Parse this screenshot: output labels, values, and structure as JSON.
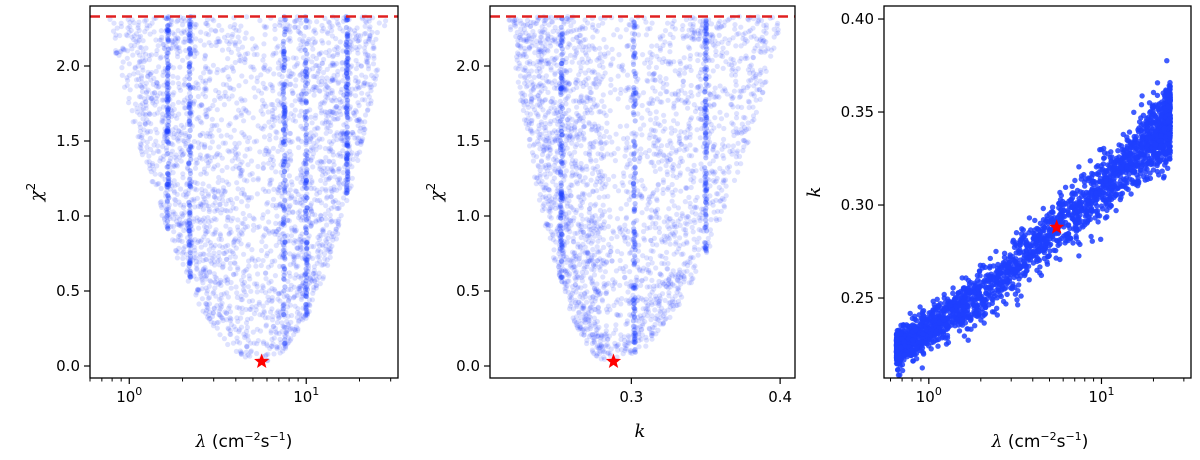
{
  "figure": {
    "background": "#ffffff",
    "point_color": "#1f3fff",
    "marker_color": "#ff0000",
    "threshold_color": "#e02020"
  },
  "chart_data": [
    {
      "type": "scatter",
      "xlabel_parts": [
        "λ",
        " (cm",
        "−2",
        "s",
        "−1",
        ")"
      ],
      "ylabel_parts": [
        "χ",
        "2"
      ],
      "x_scale": "log",
      "xlim": [
        0.6,
        33
      ],
      "ylim": [
        -0.08,
        2.4
      ],
      "x_ticks": [
        {
          "value": 1,
          "label_base": "10",
          "label_exp": "0"
        },
        {
          "value": 10,
          "label_base": "10",
          "label_exp": "1"
        }
      ],
      "y_ticks": [
        {
          "value": 0.0,
          "label": "0.0"
        },
        {
          "value": 0.5,
          "label": "0.5"
        },
        {
          "value": 1.0,
          "label": "1.0"
        },
        {
          "value": 1.5,
          "label": "1.5"
        },
        {
          "value": 2.0,
          "label": "2.0"
        }
      ],
      "threshold_y": 2.33,
      "best_fit": {
        "x": 5.6,
        "y": 0.03
      },
      "cloud": {
        "x_center": 5.6,
        "min_y": 0.03,
        "max_y": 2.33,
        "x_spread_at_top": [
          0.78,
          28
        ],
        "point_alpha": 0.15
      },
      "stripes": [
        1.65,
        2.2,
        7.5,
        10.0,
        17.0
      ]
    },
    {
      "type": "scatter",
      "xlabel": "k",
      "ylabel_parts": [
        "χ",
        "2"
      ],
      "x_scale": "linear",
      "xlim": [
        0.205,
        0.41
      ],
      "ylim": [
        -0.08,
        2.4
      ],
      "x_ticks": [
        {
          "value": 0.3,
          "label": "0.3"
        },
        {
          "value": 0.4,
          "label": "0.4"
        }
      ],
      "y_ticks": [
        {
          "value": 0.0,
          "label": "0.0"
        },
        {
          "value": 0.5,
          "label": "0.5"
        },
        {
          "value": 1.0,
          "label": "1.0"
        },
        {
          "value": 1.5,
          "label": "1.5"
        },
        {
          "value": 2.0,
          "label": "2.0"
        }
      ],
      "threshold_y": 2.33,
      "best_fit": {
        "x": 0.288,
        "y": 0.03
      },
      "cloud": {
        "x_center": 0.285,
        "min_y": 0.03,
        "max_y": 2.33,
        "x_spread_at_top": [
          0.218,
          0.4
        ],
        "point_alpha": 0.15
      },
      "stripes": [
        0.253,
        0.302,
        0.35
      ]
    },
    {
      "type": "scatter",
      "xlabel_parts": [
        "λ",
        " (cm",
        "−2",
        "s",
        "−1",
        ")"
      ],
      "ylabel": "k",
      "x_scale": "log",
      "xlim": [
        0.55,
        33
      ],
      "ylim": [
        0.207,
        0.407
      ],
      "x_ticks": [
        {
          "value": 1,
          "label_base": "10",
          "label_exp": "0"
        },
        {
          "value": 10,
          "label_base": "10",
          "label_exp": "1"
        }
      ],
      "y_ticks": [
        {
          "value": 0.25,
          "label": "0.25"
        },
        {
          "value": 0.3,
          "label": "0.30"
        },
        {
          "value": 0.35,
          "label": "0.35"
        },
        {
          "value": 0.4,
          "label": "0.40"
        }
      ],
      "best_fit": {
        "x": 5.5,
        "y": 0.288
      },
      "cloud": {
        "trend": [
          [
            0.65,
            0.222
          ],
          [
            2.0,
            0.252
          ],
          [
            5.5,
            0.288
          ],
          [
            12,
            0.315
          ],
          [
            25,
            0.345
          ]
        ],
        "spread": 0.013,
        "point_alpha": 0.85
      }
    }
  ]
}
